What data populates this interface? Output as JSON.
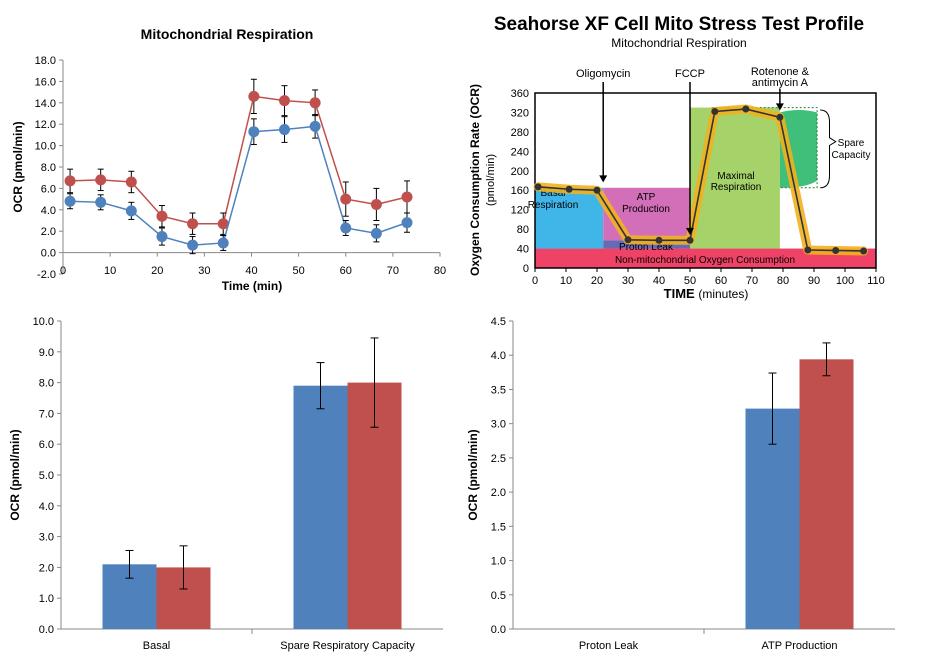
{
  "chart_data": [
    {
      "id": "line",
      "type": "line",
      "title": "Mitochondrial Respiration",
      "xlabel": "Time (min)",
      "ylabel": "OCR (pmol/min)",
      "xlim": [
        0,
        80
      ],
      "ylim": [
        -2,
        18
      ],
      "xticks": [
        "0",
        "10",
        "20",
        "30",
        "40",
        "50",
        "60",
        "70",
        "80"
      ],
      "yticks": [
        "-2.0",
        "0.0",
        "2.0",
        "4.0",
        "6.0",
        "8.0",
        "10.0",
        "12.0",
        "14.0",
        "16.0",
        "18.0"
      ],
      "x": [
        1.5,
        8,
        14.5,
        21,
        27.5,
        34,
        40.5,
        47,
        53.5,
        60,
        66.5,
        73
      ],
      "series": [
        {
          "color": "#c0504d",
          "values": [
            6.7,
            6.8,
            6.6,
            3.4,
            2.7,
            2.7,
            14.6,
            14.2,
            14.0,
            5.0,
            4.5,
            5.2
          ],
          "err": [
            1.1,
            1.0,
            1.0,
            1.0,
            1.0,
            1.0,
            1.6,
            1.4,
            1.2,
            1.6,
            1.5,
            1.5
          ]
        },
        {
          "color": "#4f81bd",
          "values": [
            4.8,
            4.7,
            3.9,
            1.5,
            0.7,
            0.9,
            11.3,
            11.5,
            11.8,
            2.3,
            1.8,
            2.8
          ],
          "err": [
            0.7,
            0.7,
            0.8,
            0.8,
            0.8,
            0.7,
            1.2,
            1.2,
            1.1,
            0.7,
            0.8,
            0.9
          ]
        }
      ]
    },
    {
      "id": "profile",
      "type": "area",
      "title": "Seahorse XF Cell Mito Stress Test Profile",
      "subtitle": "Mitochondrial Respiration",
      "xlabel_bold": "TIME",
      "xlabel_rest": "(minutes)",
      "ylabel": "Oxygen Consumption Rate (OCR)",
      "ylabel2": "(pmol/min)",
      "xlim": [
        0,
        110
      ],
      "ylim": [
        0,
        360
      ],
      "xticks": [
        "0",
        "10",
        "20",
        "30",
        "40",
        "50",
        "60",
        "70",
        "80",
        "90",
        "100",
        "110"
      ],
      "yticks": [
        "0",
        "40",
        "80",
        "120",
        "160",
        "200",
        "240",
        "280",
        "320",
        "360"
      ],
      "x": [
        1,
        11,
        20,
        30,
        40,
        50,
        58,
        68,
        79,
        88,
        97,
        106
      ],
      "values": [
        167,
        162,
        160,
        58,
        57,
        57,
        322,
        327,
        310,
        37,
        36,
        35
      ],
      "injections": [
        {
          "label": "Oligomycin",
          "x": 22
        },
        {
          "label": "FCCP",
          "x": 50
        },
        {
          "label": "Rotenone &",
          "label2": "antimycin A",
          "x": 79
        }
      ],
      "regions": {
        "basal": "Basal",
        "basal2": "Respiration",
        "atp": "ATP",
        "atp2": "Production",
        "leak": "Proton Leak",
        "maximal": "Maximal",
        "maximal2": "Respiration",
        "spare": "Spare",
        "spare2": "Capacity",
        "nonmito": "Non-mitochondrial Oxygen Consumption"
      },
      "colors": {
        "basal": "#3fb5e8",
        "atp": "#d36fb8",
        "leak": "#6a6ab2",
        "maximal": "#a6d26a",
        "spare": "#3fbf7a",
        "nonmito": "#ee4266",
        "trace": "#f2b11e"
      }
    },
    {
      "id": "bar1",
      "type": "bar",
      "ylabel": "OCR (pmol/min)",
      "ylim": [
        0,
        10
      ],
      "yticks": [
        "0.0",
        "1.0",
        "2.0",
        "3.0",
        "4.0",
        "5.0",
        "6.0",
        "7.0",
        "8.0",
        "9.0",
        "10.0"
      ],
      "categories": [
        "Basal",
        "Spare Respiratory Capacity"
      ],
      "series": [
        {
          "color": "#4f81bd",
          "values": [
            2.1,
            7.9
          ],
          "err": [
            0.45,
            0.75
          ]
        },
        {
          "color": "#c0504d",
          "values": [
            2.0,
            8.0
          ],
          "err": [
            0.7,
            1.45
          ]
        }
      ]
    },
    {
      "id": "bar2",
      "type": "bar",
      "ylabel": "OCR (pmol/min)",
      "ylim": [
        0,
        4.5
      ],
      "yticks": [
        "0.0",
        "0.5",
        "1.0",
        "1.5",
        "2.0",
        "2.5",
        "3.0",
        "3.5",
        "4.0",
        "4.5"
      ],
      "categories": [
        "Proton Leak",
        "ATP Production"
      ],
      "series": [
        {
          "color": "#4f81bd",
          "values": [
            0,
            3.22
          ],
          "err": [
            0,
            0.52
          ]
        },
        {
          "color": "#c0504d",
          "values": [
            0,
            3.94
          ],
          "err": [
            0,
            0.24
          ]
        }
      ]
    }
  ]
}
